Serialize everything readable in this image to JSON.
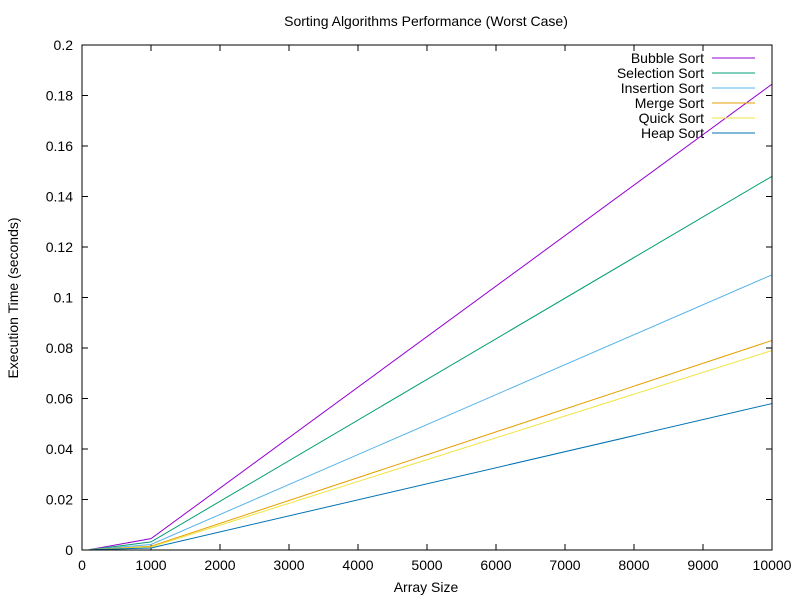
{
  "chart_data": {
    "type": "line",
    "title": "Sorting Algorithms Performance (Worst Case)",
    "xlabel": "Array Size",
    "ylabel": "Execution Time (seconds)",
    "xlim": [
      0,
      10000
    ],
    "ylim": [
      0,
      0.2
    ],
    "xticks": [
      0,
      1000,
      2000,
      3000,
      4000,
      5000,
      6000,
      7000,
      8000,
      9000,
      10000
    ],
    "yticks": [
      0,
      0.02,
      0.04,
      0.06,
      0.08,
      0.1,
      0.12,
      0.14,
      0.16,
      0.18,
      0.2
    ],
    "ytick_labels": [
      "0",
      "0.02",
      "0.04",
      "0.06",
      "0.08",
      "0.1",
      "0.12",
      "0.14",
      "0.16",
      "0.18",
      "0.2"
    ],
    "grid": false,
    "legend_position": "top-right",
    "series": [
      {
        "name": "Bubble Sort",
        "color": "#9400d3",
        "x": [
          100,
          1000,
          10000
        ],
        "y": [
          0.0001,
          0.0045,
          0.1845
        ]
      },
      {
        "name": "Selection Sort",
        "color": "#009e73",
        "x": [
          100,
          1000,
          10000
        ],
        "y": [
          0.0001,
          0.0032,
          0.148
        ]
      },
      {
        "name": "Insertion Sort",
        "color": "#56b4e9",
        "x": [
          100,
          1000,
          10000
        ],
        "y": [
          0.0001,
          0.0022,
          0.109
        ]
      },
      {
        "name": "Merge Sort",
        "color": "#e69f00",
        "x": [
          100,
          1000,
          10000
        ],
        "y": [
          0.0001,
          0.0015,
          0.083
        ]
      },
      {
        "name": "Quick Sort",
        "color": "#f0e442",
        "x": [
          100,
          1000,
          10000
        ],
        "y": [
          0.0001,
          0.0012,
          0.079
        ]
      },
      {
        "name": "Heap Sort",
        "color": "#0072b2",
        "x": [
          100,
          1000,
          10000
        ],
        "y": [
          0.0001,
          0.0008,
          0.058
        ]
      }
    ]
  }
}
